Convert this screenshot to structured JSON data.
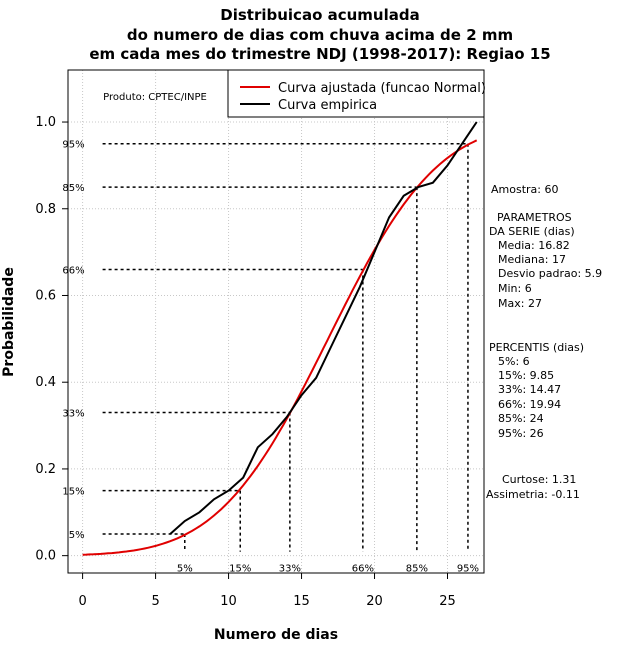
{
  "title_lines": [
    "Distribuicao acumulada",
    "do numero de dias com chuva acima de 2 mm",
    "em cada mes do trimestre NDJ (1998-2017): Regiao 15"
  ],
  "producer": "Produto: CPTEC/INPE",
  "legend": {
    "fitted": "Curva ajustada (funcao Normal)",
    "empirical": "Curva empirica"
  },
  "colors": {
    "fitted": "#e00000",
    "empirical": "#000000",
    "grid": "#c8c8c8"
  },
  "stats": {
    "sample": "Amostra: 60",
    "params_title_1": "PARAMETROS",
    "params_title_2": "DA SERIE (dias)",
    "media": "Media: 16.82",
    "mediana": "Mediana: 17",
    "desvio": "Desvio padrao: 5.9",
    "min": "Min: 6",
    "max": "Max: 27",
    "percentis_title": "PERCENTIS (dias)",
    "p5": "5%: 6",
    "p15": "15%: 9.85",
    "p33": "33%: 14.47",
    "p66": "66%: 19.94",
    "p85": "85%: 24",
    "p95": "95%: 26",
    "curtose": "Curtose: 1.31",
    "assimetria": "Assimetria: -0.11"
  },
  "chart_data": {
    "type": "line",
    "title": "Distribuicao acumulada do numero de dias com chuva acima de 2 mm em cada mes do trimestre NDJ (1998-2017): Regiao 15",
    "xlabel": "Numero de dias",
    "ylabel": "Probabilidade",
    "xlim": [
      -1,
      27.5
    ],
    "ylim": [
      -0.04,
      1.12
    ],
    "x_ticks": [
      0,
      5,
      10,
      15,
      20,
      25
    ],
    "y_ticks": [
      0.0,
      0.2,
      0.4,
      0.6,
      0.8,
      1.0
    ],
    "y_tick_labels": [
      "0.0",
      "0.2",
      "0.4",
      "0.6",
      "0.8",
      "1.0"
    ],
    "grid": true,
    "legend_position": "top-right",
    "fitted_normal": {
      "name": "Curva ajustada (funcao Normal)",
      "mean": 16.82,
      "sd": 5.9,
      "x_range": [
        0,
        27
      ]
    },
    "empirical": {
      "name": "Curva empirica",
      "x": [
        6,
        7,
        8,
        9,
        10,
        11,
        12,
        13,
        14,
        15,
        16,
        17,
        18,
        19,
        20,
        21,
        22,
        23,
        24,
        25,
        26,
        27
      ],
      "y": [
        0.05,
        0.08,
        0.1,
        0.13,
        0.15,
        0.18,
        0.25,
        0.28,
        0.32,
        0.37,
        0.41,
        0.48,
        0.55,
        0.62,
        0.7,
        0.78,
        0.83,
        0.85,
        0.86,
        0.9,
        0.95,
        1.0
      ]
    },
    "percentiles": [
      {
        "label": "5%",
        "p": 0.05,
        "x": 7
      },
      {
        "label": "15%",
        "p": 0.15,
        "x": 10.8
      },
      {
        "label": "33%",
        "p": 0.33,
        "x": 14.2
      },
      {
        "label": "66%",
        "p": 0.66,
        "x": 19.2
      },
      {
        "label": "85%",
        "p": 0.85,
        "x": 22.9
      },
      {
        "label": "95%",
        "p": 0.95,
        "x": 26.4
      }
    ]
  }
}
